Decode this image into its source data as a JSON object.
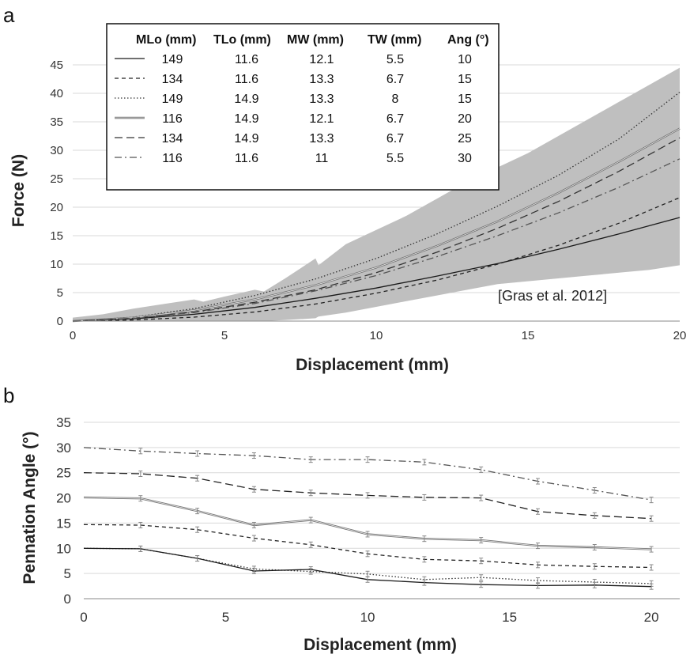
{
  "chart_data": [
    {
      "panel": "a",
      "type": "line",
      "xlabel": "Displacement (mm)",
      "ylabel": "Force (N)",
      "xlim": [
        0,
        20
      ],
      "ylim": [
        0,
        45
      ],
      "xticks": [
        0,
        5,
        10,
        15,
        20
      ],
      "yticks": [
        0,
        5,
        10,
        15,
        20,
        25,
        30,
        35,
        40,
        45
      ],
      "grid": "horizontal",
      "legend_position": "top-left",
      "annotation": "[Gras et al. 2012]",
      "band": {
        "x": [
          0,
          1,
          2,
          3,
          4,
          4.3,
          5,
          6,
          6.3,
          7,
          8,
          8.1,
          9,
          10,
          11,
          12,
          13,
          14,
          15,
          16,
          17,
          18,
          19,
          20
        ],
        "upper": [
          0.6,
          1.2,
          2.2,
          3.0,
          3.8,
          3.4,
          4.3,
          5.5,
          5.2,
          7.5,
          11.0,
          9.8,
          13.5,
          16.0,
          18.5,
          21.5,
          24.5,
          27.0,
          29.5,
          32.5,
          35.5,
          38.5,
          41.5,
          44.5
        ],
        "lower": [
          0.0,
          0.0,
          0.0,
          0.0,
          0.0,
          0.0,
          0.0,
          0.0,
          0.0,
          0.2,
          0.5,
          0.8,
          1.5,
          2.5,
          3.5,
          4.5,
          5.5,
          6.5,
          7.0,
          7.5,
          8.0,
          8.5,
          9.0,
          9.8
        ],
        "color": "#bfbfbf"
      },
      "legend_headers": [
        "MLo (mm)",
        "TLo (mm)",
        "MW (mm)",
        "TW (mm)",
        "Ang (°)"
      ],
      "x": [
        0,
        2,
        4,
        6,
        8,
        10,
        12,
        14,
        16,
        18,
        20
      ],
      "series": [
        {
          "values": [
            0,
            0.4,
            1.2,
            2.4,
            4.0,
            5.8,
            7.9,
            10.1,
            12.6,
            15.3,
            18.2
          ],
          "row": [
            "149",
            "11.6",
            "12.1",
            "5.5",
            "10"
          ],
          "dash": "solid",
          "color": "#1a1a1a"
        },
        {
          "values": [
            0,
            0.2,
            0.7,
            1.6,
            3.0,
            4.9,
            7.2,
            10.0,
            13.3,
            17.2,
            21.7
          ],
          "row": [
            "134",
            "11.6",
            "13.3",
            "6.7",
            "15"
          ],
          "dash": "dash",
          "color": "#222222"
        },
        {
          "values": [
            0,
            0.7,
            2.2,
            4.5,
            7.4,
            11.0,
            15.3,
            20.2,
            25.6,
            32.0,
            40.2
          ],
          "row": [
            "149",
            "14.9",
            "13.3",
            "8",
            "15"
          ],
          "dash": "dot",
          "color": "#333333"
        },
        {
          "values": [
            0,
            0.6,
            1.9,
            3.8,
            6.3,
            9.4,
            13.2,
            17.5,
            22.5,
            28.0,
            33.8
          ],
          "row": [
            "116",
            "14.9",
            "12.1",
            "6.7",
            "20"
          ],
          "dash": "double",
          "color": "#777777"
        },
        {
          "values": [
            0,
            0.5,
            1.6,
            3.3,
            5.5,
            8.5,
            12.1,
            16.3,
            21.0,
            26.3,
            32.2
          ],
          "row": [
            "134",
            "14.9",
            "13.3",
            "6.7",
            "25"
          ],
          "dash": "longdash",
          "color": "#333333"
        },
        {
          "values": [
            0,
            0.5,
            1.5,
            3.1,
            5.3,
            8.0,
            11.3,
            15.0,
            19.0,
            23.5,
            28.5
          ],
          "row": [
            "116",
            "11.6",
            "11",
            "5.5",
            "30"
          ],
          "dash": "dashdot",
          "color": "#555555"
        }
      ]
    },
    {
      "panel": "b",
      "type": "line",
      "xlabel": "Displacement (mm)",
      "ylabel": "Pennation Angle (°)",
      "xlim": [
        0,
        21
      ],
      "ylim": [
        0,
        35
      ],
      "xticks": [
        0,
        5,
        10,
        15,
        20
      ],
      "yticks": [
        0,
        5,
        10,
        15,
        20,
        25,
        30,
        35
      ],
      "grid": "horizontal",
      "x": [
        0,
        2,
        4,
        6,
        8,
        10,
        12,
        14,
        16,
        18,
        20
      ],
      "series": [
        {
          "values": [
            30,
            29.3,
            28.8,
            28.4,
            27.6,
            27.6,
            27.1,
            25.6,
            23.3,
            21.5,
            19.6
          ],
          "dash": "dashdot",
          "color": "#555555"
        },
        {
          "values": [
            25,
            24.8,
            23.9,
            21.7,
            21.0,
            20.5,
            20.1,
            20.0,
            17.3,
            16.5,
            15.9
          ],
          "dash": "longdash",
          "color": "#222222"
        },
        {
          "values": [
            20.1,
            19.9,
            17.4,
            14.6,
            15.6,
            12.8,
            11.9,
            11.6,
            10.5,
            10.2,
            9.8
          ],
          "dash": "double",
          "color": "#777777"
        },
        {
          "values": [
            14.7,
            14.6,
            13.7,
            12.0,
            10.7,
            8.9,
            7.8,
            7.5,
            6.7,
            6.4,
            6.2
          ],
          "dash": "dash",
          "color": "#222222"
        },
        {
          "values": [
            10,
            9.9,
            8.0,
            5.9,
            5.4,
            4.9,
            3.8,
            4.2,
            3.6,
            3.3,
            3.0
          ],
          "dash": "dot",
          "color": "#333333"
        },
        {
          "values": [
            10,
            9.9,
            8.0,
            5.5,
            5.8,
            3.8,
            3.2,
            2.8,
            2.6,
            2.7,
            2.4
          ],
          "dash": "solid",
          "color": "#1a1a1a"
        }
      ]
    }
  ]
}
